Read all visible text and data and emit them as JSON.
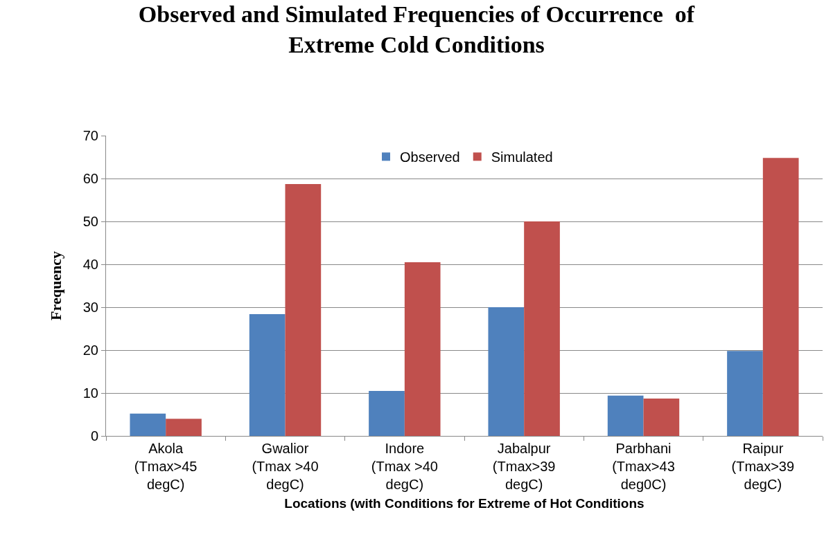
{
  "chart_data": {
    "type": "bar",
    "title": "Observed and Simulated Frequencies of Occurrence  of\nExtreme Cold Conditions",
    "xlabel": "Locations (with Conditions for Extreme of Hot Conditions",
    "ylabel": "Frequency",
    "categories": [
      "Akola\n(Tmax>45\ndegC)",
      "Gwalior\n(Tmax >40\ndegC)",
      "Indore\n(Tmax >40\ndegC)",
      "Jabalpur\n(Tmax>39\ndegC)",
      "Parbhani\n(Tmax>43\ndeg0C)",
      "Raipur\n(Tmax>39\ndegC)"
    ],
    "series": [
      {
        "name": "Observed",
        "color": "#4f81bd",
        "values": [
          5.2,
          28.4,
          10.5,
          30,
          9.4,
          19.8
        ]
      },
      {
        "name": "Simulated",
        "color": "#c0504d",
        "values": [
          4,
          58.7,
          40.5,
          50,
          8.7,
          64.8
        ]
      }
    ],
    "ylim": [
      0,
      70
    ],
    "yticks": [
      0,
      10,
      20,
      30,
      40,
      50,
      60,
      70
    ],
    "grid": "y",
    "legend": "top"
  }
}
